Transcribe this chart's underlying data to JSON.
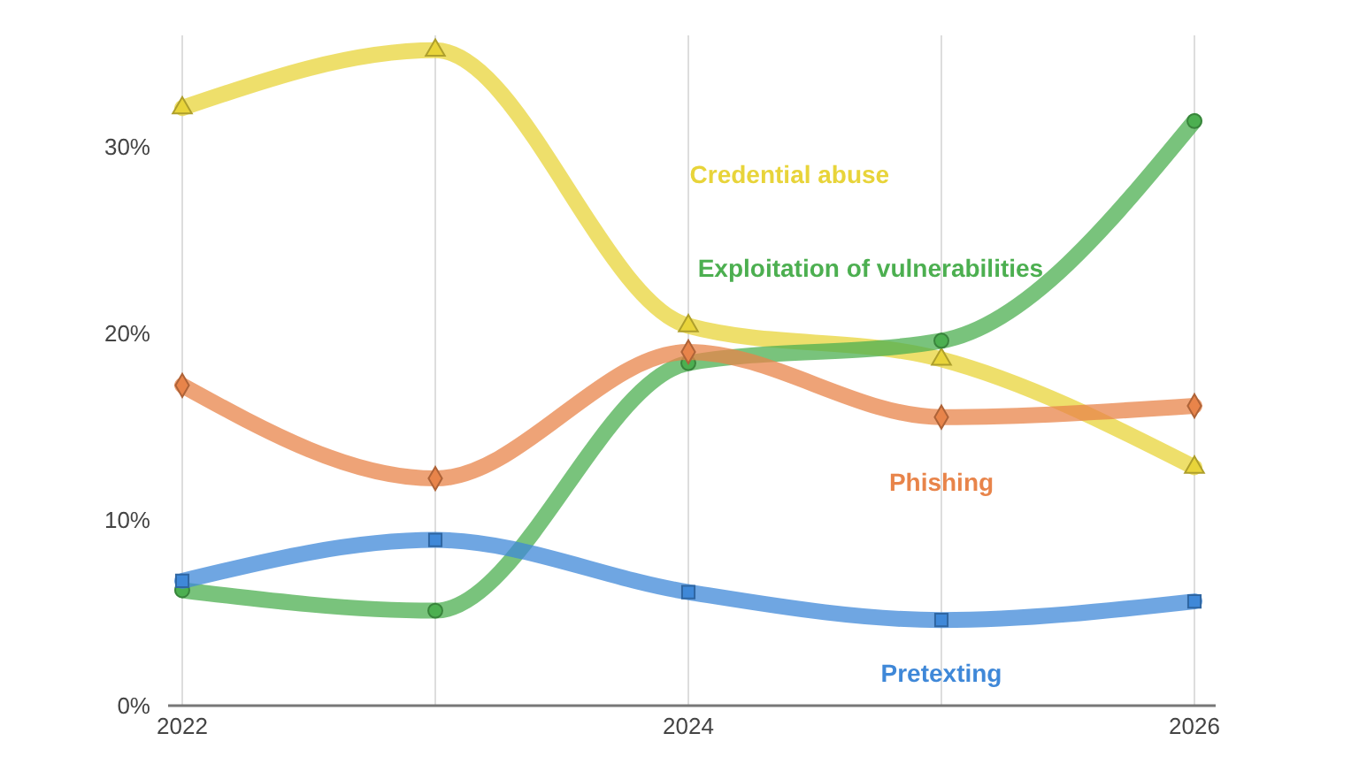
{
  "chart_data": {
    "type": "line",
    "x": [
      2022,
      2023,
      2024,
      2025,
      2026
    ],
    "xlim": [
      2022,
      2026
    ],
    "xticks": [
      2022,
      {
        "value": 2023,
        "label": null
      },
      2024,
      {
        "value": 2025,
        "label": null
      },
      2026
    ],
    "ylim": [
      0,
      36
    ],
    "yticks": [
      {
        "value": 0,
        "label": "0%"
      },
      {
        "value": 10,
        "label": "10%"
      },
      {
        "value": 20,
        "label": "20%"
      },
      {
        "value": 30,
        "label": "30%"
      }
    ],
    "grid": "x",
    "series": [
      {
        "name": "Credential abuse",
        "color": "#e8d43a",
        "marker": "triangle",
        "values": [
          32.1,
          35.2,
          20.4,
          18.6,
          12.8
        ]
      },
      {
        "name": "Exploitation of vulnerabilities",
        "color": "#4caf50",
        "marker": "circle",
        "values": [
          6.2,
          5.1,
          18.4,
          19.6,
          31.4
        ]
      },
      {
        "name": "Phishing",
        "color": "#e8844a",
        "marker": "diamond",
        "values": [
          17.2,
          12.2,
          19.0,
          15.5,
          16.1
        ]
      },
      {
        "name": "Pretexting",
        "color": "#3f88d8",
        "marker": "square",
        "values": [
          6.7,
          8.9,
          6.1,
          4.6,
          5.6
        ]
      }
    ]
  }
}
